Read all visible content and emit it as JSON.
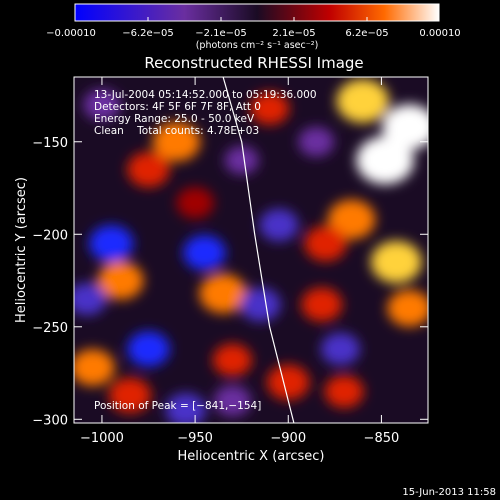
{
  "chart_data": {
    "type": "heatmap",
    "title": "Reconstructed RHESSI Image",
    "xlabel": "Heliocentric X (arcsec)",
    "ylabel": "Heliocentric Y (arcsec)",
    "xlim": [
      -1015,
      -825
    ],
    "ylim": [
      -302,
      -115
    ],
    "x_ticks": [
      -1000,
      -950,
      -900,
      -850
    ],
    "y_ticks": [
      -150,
      -200,
      -250,
      -300
    ],
    "x_tick_labels": [
      "−1000",
      "−950",
      "−900",
      "−850"
    ],
    "y_tick_labels": [
      "−150",
      "−200",
      "−250",
      "−300"
    ],
    "colorbar": {
      "min": -0.0001,
      "max": 0.0001,
      "ticks": [
        -0.0001,
        -6.2e-05,
        -2.1e-05,
        2.1e-05,
        6.2e-05,
        0.0001
      ],
      "tick_labels": [
        "−0.00010",
        "−6.2e−05",
        "−2.1e−05",
        "2.1e−05",
        "6.2e−05",
        "0.00010"
      ],
      "units": "(photons cm⁻² s⁻¹ asec⁻²)",
      "colors": [
        "#0000ff",
        "#6a2ea0",
        "#1a0b24",
        "#c00000",
        "#ff6a00",
        "#ffffff"
      ]
    },
    "limb_curve": [
      [
        -935,
        -115
      ],
      [
        -925,
        -150
      ],
      [
        -918,
        -200
      ],
      [
        -910,
        -250
      ],
      [
        -897,
        -302
      ]
    ],
    "peak": [
      -841,
      -154
    ],
    "annotations": [
      "13-Jul-2004 05:14:52.000 to 05:19:36.000",
      "Detectors: 4F 5F 6F 7F 8F, Att 0",
      "Energy Range: 25.0 - 50.0 keV",
      "Clean    Total counts: 4.78E+03"
    ],
    "peak_label": "Position of Peak = [−841,−154]",
    "footer": "15-Jun-2013 11:58",
    "blobs": [
      {
        "x": -848,
        "y": -160,
        "v": 1.0
      },
      {
        "x": -835,
        "y": -142,
        "v": 0.9
      },
      {
        "x": -860,
        "y": -128,
        "v": 0.85
      },
      {
        "x": -866,
        "y": -192,
        "v": 0.7
      },
      {
        "x": -842,
        "y": -215,
        "v": 0.8
      },
      {
        "x": -835,
        "y": -240,
        "v": 0.6
      },
      {
        "x": -880,
        "y": -205,
        "v": 0.55
      },
      {
        "x": -882,
        "y": -238,
        "v": 0.5
      },
      {
        "x": -900,
        "y": -280,
        "v": 0.55
      },
      {
        "x": -870,
        "y": -285,
        "v": 0.45
      },
      {
        "x": -960,
        "y": -150,
        "v": 0.7
      },
      {
        "x": -975,
        "y": -165,
        "v": 0.55
      },
      {
        "x": -935,
        "y": -232,
        "v": 0.7
      },
      {
        "x": -990,
        "y": -225,
        "v": 0.65
      },
      {
        "x": -1005,
        "y": -272,
        "v": 0.6
      },
      {
        "x": -985,
        "y": -287,
        "v": 0.55
      },
      {
        "x": -930,
        "y": -268,
        "v": 0.45
      },
      {
        "x": -950,
        "y": -183,
        "v": 0.4
      },
      {
        "x": -910,
        "y": -132,
        "v": 0.45
      },
      {
        "x": -1000,
        "y": -130,
        "v": -0.4
      },
      {
        "x": -995,
        "y": -205,
        "v": -0.6
      },
      {
        "x": -1008,
        "y": -235,
        "v": -0.45
      },
      {
        "x": -975,
        "y": -262,
        "v": -0.55
      },
      {
        "x": -955,
        "y": -295,
        "v": -0.5
      },
      {
        "x": -905,
        "y": -195,
        "v": -0.45
      },
      {
        "x": -915,
        "y": -238,
        "v": -0.5
      },
      {
        "x": -930,
        "y": -290,
        "v": -0.4
      },
      {
        "x": -872,
        "y": -262,
        "v": -0.45
      },
      {
        "x": -945,
        "y": -210,
        "v": -0.55
      },
      {
        "x": -885,
        "y": -150,
        "v": -0.35
      },
      {
        "x": -925,
        "y": -160,
        "v": -0.3
      }
    ]
  }
}
